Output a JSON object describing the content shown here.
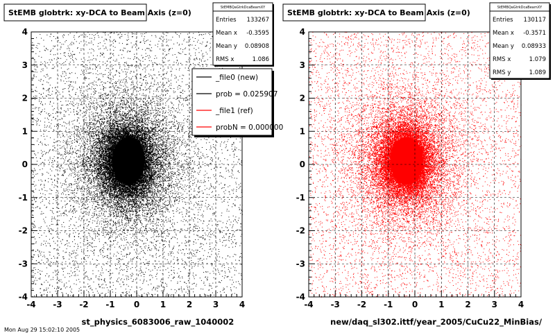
{
  "footer_text": "Mon Aug 29 15:02:10 2005",
  "chart_data": [
    {
      "type": "scatter",
      "title": "StEMB globtrk: xy-DCA to Beam Axis (z=0)",
      "xlabel": "st_physics_6083006_raw_1040002",
      "ylabel": "",
      "xlim": [
        -4,
        4
      ],
      "ylim": [
        -4,
        4
      ],
      "xticks": [
        "-4",
        "-3",
        "-2",
        "-1",
        "0",
        "1",
        "2",
        "3",
        "4"
      ],
      "yticks": [
        "-4",
        "-3",
        "-2",
        "-1",
        "0",
        "1",
        "2",
        "3",
        "4"
      ],
      "grid": true,
      "marker_color": "#000000",
      "distribution": {
        "entries": 133267,
        "mean_x": -0.3595,
        "mean_y": 0.08908,
        "rms_x": 1.086
      },
      "stats": {
        "name": "StEMBQaGtrkDcaBeamXY",
        "rows": [
          {
            "label": "Entries",
            "value": "133267"
          },
          {
            "label": "Mean x",
            "value": "-0.3595"
          },
          {
            "label": "Mean y",
            "value": "0.08908"
          },
          {
            "label": "RMS x",
            "value": "1.086"
          }
        ]
      },
      "legend": {
        "position": "top-right",
        "entries": [
          {
            "label": "_file0 (new)",
            "color": "#000000"
          },
          {
            "label": "prob = 0.025907",
            "color": "#000000"
          },
          {
            "label": "_file1 (ref)",
            "color": "#ff0000"
          },
          {
            "label": "probN = 0.000000",
            "color": "#ff0000"
          }
        ]
      }
    },
    {
      "type": "scatter",
      "title": "StEMB globtrk: xy-DCA to Beam Axis (z=0)",
      "xlabel": "new/daq_sl302.ittf/year_2005/CuCu22_MinBias/",
      "ylabel": "",
      "xlim": [
        -4,
        4
      ],
      "ylim": [
        -4,
        4
      ],
      "xticks": [
        "-4",
        "-3",
        "-2",
        "-1",
        "0",
        "1",
        "2",
        "3",
        "4"
      ],
      "yticks": [
        "-4",
        "-3",
        "-2",
        "-1",
        "0",
        "1",
        "2",
        "3",
        "4"
      ],
      "grid": true,
      "marker_color": "#ff0000",
      "distribution": {
        "entries": 130117,
        "mean_x": -0.3571,
        "mean_y": 0.08933,
        "rms_x": 1.079,
        "rms_y": 1.089
      },
      "stats": {
        "name": "StEMBQaGtrkDcaBeamXY",
        "rows": [
          {
            "label": "Entries",
            "value": "130117"
          },
          {
            "label": "Mean x",
            "value": "-0.3571"
          },
          {
            "label": "Mean y",
            "value": "0.08933"
          },
          {
            "label": "RMS x",
            "value": "1.079"
          },
          {
            "label": "RMS y",
            "value": "1.089"
          }
        ]
      }
    }
  ]
}
